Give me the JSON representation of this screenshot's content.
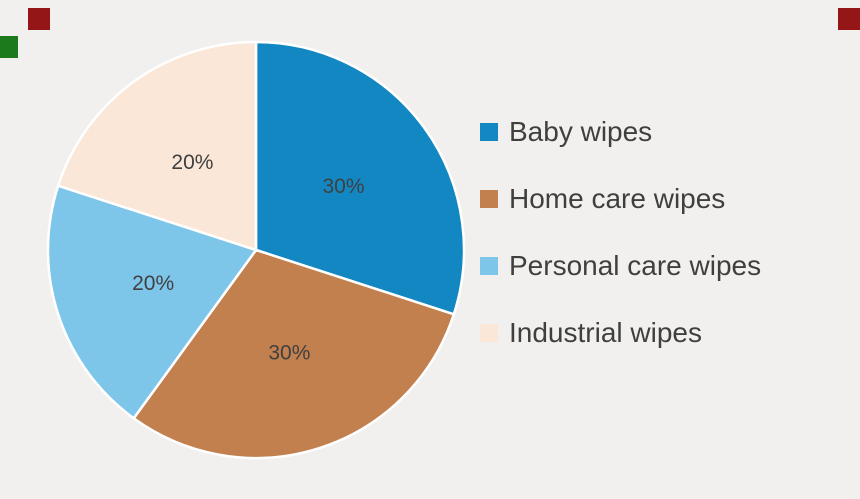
{
  "background_color": "#f1f0ee",
  "chart_data": {
    "type": "pie",
    "title": "",
    "start_angle_deg": 0,
    "direction": "clockwise",
    "legend_position": "right",
    "data_label_color": "#404040",
    "slice_border_color": "#ffffff",
    "slices": [
      {
        "label": "Baby wipes",
        "value": 30,
        "data_label": "30%",
        "color": "#1387c2"
      },
      {
        "label": "Home care wipes",
        "value": 30,
        "data_label": "30%",
        "color": "#c2804e"
      },
      {
        "label": "Personal care wipes",
        "value": 20,
        "data_label": "20%",
        "color": "#7dc6ea"
      },
      {
        "label": "Industrial wipes",
        "value": 20,
        "data_label": "20%",
        "color": "#fae7d7"
      }
    ]
  },
  "artifacts": {
    "top_left_color": "#951616",
    "top_right_color": "#951616",
    "left_color": "#1c7a1c"
  }
}
